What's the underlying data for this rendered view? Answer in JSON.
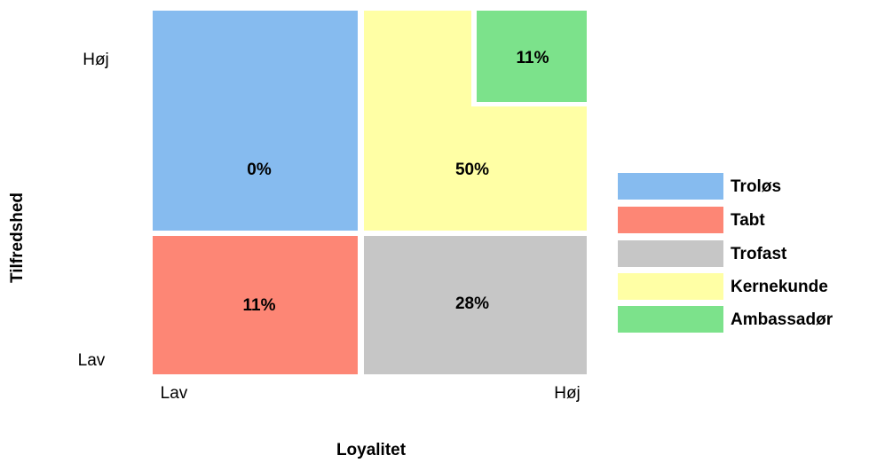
{
  "chart_data": {
    "type": "quadrant",
    "x_label": "Loyalitet",
    "y_label": "Tilfredshed",
    "x_low": "Lav",
    "x_high": "Høj",
    "y_low": "Lav",
    "y_high": "Høj",
    "categories": [
      "Troløs",
      "Tabt",
      "Trofast",
      "Kernekunde",
      "Ambassadør"
    ],
    "values": [
      0,
      11,
      28,
      50,
      11
    ],
    "value_labels": [
      "0%",
      "11%",
      "28%",
      "50%",
      "11%"
    ],
    "colors": [
      "#86bbef",
      "#fd8675",
      "#c6c6c6",
      "#ffffa5",
      "#7ce28b"
    ],
    "legend": "right"
  }
}
